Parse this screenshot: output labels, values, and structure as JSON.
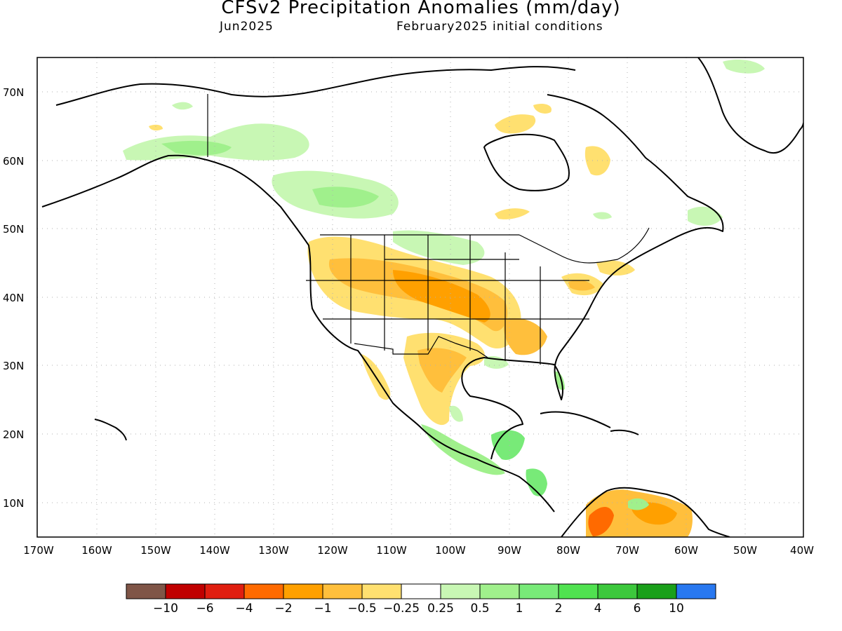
{
  "header": {
    "title": "CFSv2 Precipitation Anomalies (mm/day)",
    "valid_month": "Jun2025",
    "initial_conditions": "February2025 initial conditions"
  },
  "axes": {
    "lat_labels": [
      "70N",
      "60N",
      "50N",
      "40N",
      "30N",
      "20N",
      "10N"
    ],
    "lon_labels": [
      "170W",
      "160W",
      "150W",
      "140W",
      "130W",
      "120W",
      "110W",
      "100W",
      "90W",
      "80W",
      "70W",
      "60W",
      "50W",
      "40W"
    ]
  },
  "colorbar": {
    "colors": [
      "#7f5547",
      "#c00000",
      "#e01e10",
      "#ff6a00",
      "#ffa000",
      "#ffbf3c",
      "#ffe070",
      "#ffffff",
      "#c8f7b4",
      "#a0f08c",
      "#78ea78",
      "#50e250",
      "#3cc83c",
      "#1aa01a",
      "#2878f0"
    ],
    "labels": [
      "−10",
      "−6",
      "−4",
      "−2",
      "−1",
      "−0.5",
      "−0.25",
      "0.25",
      "0.5",
      "1",
      "2",
      "4",
      "6",
      "10"
    ]
  },
  "colors": {
    "dry_light": "#ffe070",
    "dry_mid": "#ffbf3c",
    "dry_strong": "#ffa000",
    "dry_heavy": "#ff6a00",
    "wet_light": "#c8f7b4",
    "wet_mid": "#a0f08c",
    "wet_strong": "#78ea78"
  }
}
